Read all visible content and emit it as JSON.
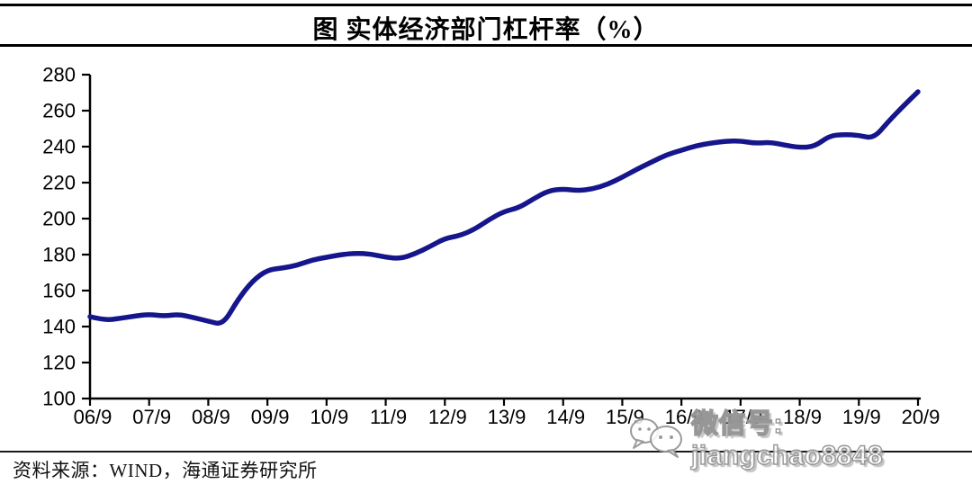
{
  "title": "图  实体经济部门杠杆率（%）",
  "source": "资料来源：WIND，海通证券研究所",
  "watermark": {
    "icon": "wechat-chat-bubbles",
    "text": "微信号: jiangchao8848"
  },
  "colors": {
    "line": "#16168C",
    "axis": "#000000",
    "tick_label": "#000000",
    "background": "#FFFFFF",
    "watermark_gray": "#919191"
  },
  "chart_data": {
    "type": "line",
    "title": "图  实体经济部门杠杆率（%）",
    "series_name": "实体经济部门杠杆率",
    "x_start": "2006Q3",
    "x_end": "2020Q3",
    "x_frequency": "quarterly",
    "x_tick_labels": [
      "06/9",
      "07/9",
      "08/9",
      "09/9",
      "10/9",
      "11/9",
      "12/9",
      "13/9",
      "14/9",
      "15/9",
      "16/9",
      "17/9",
      "18/9",
      "19/9",
      "20/9"
    ],
    "y_ticks": [
      100,
      120,
      140,
      160,
      180,
      200,
      220,
      240,
      260,
      280
    ],
    "ylim": [
      100,
      280
    ],
    "grid": false,
    "legend": "none",
    "values": [
      145.5,
      143.5,
      144.5,
      145.8,
      146.8,
      145.8,
      146.8,
      145.0,
      143.0,
      141.0,
      155.0,
      165.5,
      171.5,
      172.5,
      174.0,
      177.0,
      178.5,
      180.0,
      180.8,
      180.3,
      178.5,
      177.8,
      180.5,
      184.5,
      189.0,
      190.5,
      194.0,
      199.5,
      204.0,
      206.0,
      211.0,
      215.5,
      216.5,
      215.5,
      216.5,
      219.0,
      223.0,
      227.5,
      231.5,
      235.5,
      238.0,
      240.5,
      242.0,
      243.0,
      243.2,
      241.8,
      242.5,
      240.8,
      239.5,
      240.0,
      246.0,
      246.8,
      246.3,
      244.5,
      254.0,
      262.5,
      270.5
    ]
  }
}
